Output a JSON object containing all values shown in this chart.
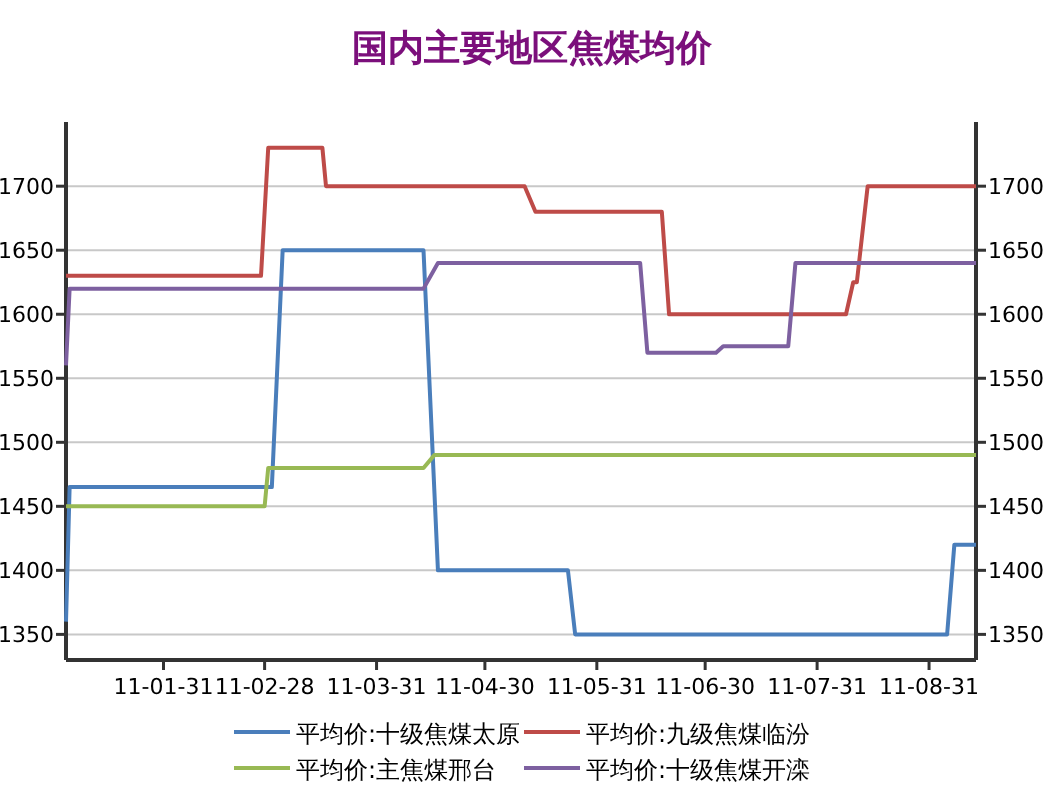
{
  "chart_data": {
    "type": "line",
    "title": "国内主要地区焦煤均价",
    "xlim": [
      "--01-04",
      "--09-13"
    ],
    "xticks": [
      {
        "value": "--01-31",
        "label": "11-01-31"
      },
      {
        "value": "--02-28",
        "label": "11-02-28"
      },
      {
        "value": "--03-31",
        "label": "11-03-31"
      },
      {
        "value": "--04-30",
        "label": "11-04-30"
      },
      {
        "value": "--05-31",
        "label": "11-05-31"
      },
      {
        "value": "--06-30",
        "label": "11-06-30"
      },
      {
        "value": "--07-31",
        "label": "11-07-31"
      },
      {
        "value": "--08-31",
        "label": "11-08-31"
      }
    ],
    "ylim": [
      1330,
      1747
    ],
    "yticks": [
      1350,
      1400,
      1450,
      1500,
      1550,
      1600,
      1650,
      1700
    ],
    "y2lim": [
      1330,
      1747
    ],
    "y2ticks": [
      1350,
      1400,
      1450,
      1500,
      1550,
      1600,
      1650,
      1700
    ],
    "grid": "y",
    "legend": "bottom",
    "series": [
      {
        "name": "平均价:十级焦煤太原",
        "color": "#4a7ebb",
        "x": [
          "--01-04",
          "--01-05",
          "--03-02",
          "--03-05",
          "--04-13",
          "--04-17",
          "--05-23",
          "--05-25",
          "--09-05",
          "--09-07",
          "--09-13"
        ],
        "values": [
          1360,
          1465,
          1465,
          1650,
          1650,
          1400,
          1400,
          1350,
          1350,
          1420,
          1420
        ]
      },
      {
        "name": "平均价:九级焦煤临汾",
        "color": "#be4b48",
        "x": [
          "--01-04",
          "--02-27",
          "--03-01",
          "--03-16",
          "--03-17",
          "--05-11",
          "--05-14",
          "--06-18",
          "--06-20",
          "--08-08",
          "--08-10",
          "--08-11",
          "--08-14",
          "--09-13"
        ],
        "values": [
          1630,
          1630,
          1730,
          1730,
          1700,
          1700,
          1680,
          1680,
          1600,
          1600,
          1625,
          1625,
          1700,
          1700
        ]
      },
      {
        "name": "平均价:主焦煤邢台",
        "color": "#98b954",
        "x": [
          "--01-04",
          "--02-28",
          "--03-01",
          "--04-13",
          "--04-16",
          "--09-13"
        ],
        "values": [
          1450,
          1450,
          1480,
          1480,
          1490,
          1490
        ]
      },
      {
        "name": "平均价:十级焦煤开滦",
        "color": "#7d60a0",
        "x": [
          "--01-04",
          "--01-05",
          "--04-13",
          "--04-17",
          "--06-12",
          "--06-14",
          "--07-03",
          "--07-05",
          "--07-23",
          "--07-25",
          "--09-13"
        ],
        "values": [
          1560,
          1620,
          1620,
          1640,
          1640,
          1570,
          1570,
          1575,
          1575,
          1640,
          1640
        ]
      }
    ]
  }
}
